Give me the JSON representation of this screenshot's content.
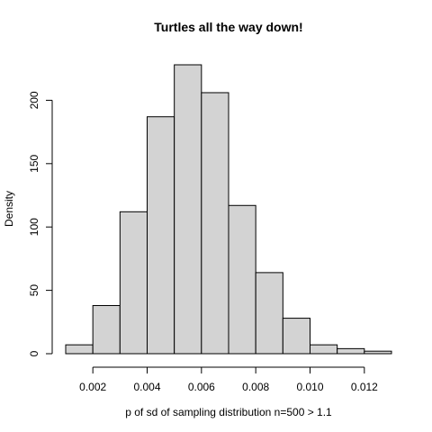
{
  "chart_data": {
    "type": "bar",
    "title": "Turtles all the way down!",
    "xlabel": "p of sd of sampling distribution n=500 > 1.1",
    "ylabel": "Density",
    "bins": [
      {
        "start": 0.001,
        "end": 0.002,
        "density": 7
      },
      {
        "start": 0.002,
        "end": 0.003,
        "density": 38
      },
      {
        "start": 0.003,
        "end": 0.004,
        "density": 112
      },
      {
        "start": 0.004,
        "end": 0.005,
        "density": 187
      },
      {
        "start": 0.005,
        "end": 0.006,
        "density": 228
      },
      {
        "start": 0.006,
        "end": 0.007,
        "density": 206
      },
      {
        "start": 0.007,
        "end": 0.008,
        "density": 117
      },
      {
        "start": 0.008,
        "end": 0.009,
        "density": 64
      },
      {
        "start": 0.009,
        "end": 0.01,
        "density": 28
      },
      {
        "start": 0.01,
        "end": 0.011,
        "density": 7
      },
      {
        "start": 0.011,
        "end": 0.012,
        "density": 4
      },
      {
        "start": 0.012,
        "end": 0.013,
        "density": 2
      }
    ],
    "xlim": [
      0.001,
      0.013
    ],
    "ylim": [
      0,
      228
    ],
    "x_ticks": [
      0.002,
      0.004,
      0.006,
      0.008,
      0.01,
      0.012
    ],
    "x_tick_labels": [
      "0.002",
      "0.004",
      "0.006",
      "0.008",
      "0.010",
      "0.012"
    ],
    "y_ticks": [
      0,
      50,
      100,
      150,
      200
    ],
    "y_tick_labels": [
      "0",
      "50",
      "100",
      "150",
      "200"
    ],
    "grid": false,
    "colors": {
      "bar_fill": "#d3d3d3",
      "bar_stroke": "#000000"
    }
  }
}
